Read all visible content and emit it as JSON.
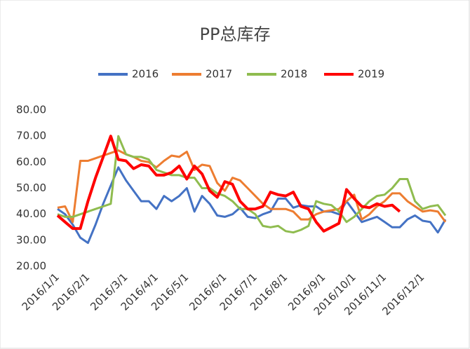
{
  "chart_data": {
    "type": "line",
    "title": "PP总库存",
    "categories": [
      "2016/1/1",
      null,
      null,
      null,
      "2016/2/1",
      null,
      null,
      null,
      null,
      "2016/3/1",
      null,
      null,
      null,
      "2016/4/1",
      null,
      null,
      null,
      "2016/5/1",
      null,
      null,
      null,
      null,
      "2016/6/1",
      null,
      null,
      null,
      "2016/7/1",
      null,
      null,
      null,
      "2016/8/1",
      null,
      null,
      null,
      null,
      "2016/9/1",
      null,
      null,
      null,
      "2016/10/1",
      null,
      null,
      null,
      "2016/11/1",
      null,
      null,
      null,
      null,
      "2016/12/1",
      null,
      null,
      null
    ],
    "series": [
      {
        "name": "2016",
        "color": "#4472c4",
        "values": [
          42,
          40,
          36,
          31,
          29,
          36,
          44,
          51,
          58,
          53,
          49,
          45,
          45,
          42,
          47,
          45,
          47,
          50,
          41,
          47,
          44,
          39.5,
          39,
          40,
          42.5,
          39,
          38.5,
          40,
          41,
          46,
          46,
          42.5,
          43.5,
          43,
          43,
          41,
          41,
          40,
          45,
          41,
          37,
          38,
          39,
          37,
          35,
          35,
          38,
          39.5,
          37.5,
          37,
          33,
          38
        ]
      },
      {
        "name": "2017",
        "color": "#ed7d31",
        "values": [
          42.5,
          43,
          37,
          60.5,
          60.5,
          61.5,
          62.5,
          63.5,
          64.5,
          63,
          62,
          60.5,
          60,
          58,
          60.5,
          62.5,
          62,
          64,
          57,
          59,
          58.5,
          52,
          49,
          54,
          53,
          50,
          47,
          44,
          42,
          42,
          42,
          41,
          38,
          38,
          40,
          41,
          41.5,
          42,
          45,
          47.5,
          38,
          40,
          43,
          45,
          48,
          48,
          45,
          43,
          41,
          41.5,
          41,
          37
        ]
      },
      {
        "name": "2018",
        "color": "#8fbc4f",
        "values": [
          40,
          39,
          39,
          40,
          41,
          42,
          43,
          44,
          70,
          63,
          62,
          62,
          61,
          57,
          56,
          55,
          55,
          54,
          54,
          50,
          50,
          48,
          47,
          45,
          42,
          42,
          40,
          35.5,
          35,
          35.5,
          33.5,
          33,
          34,
          35.5,
          45,
          44,
          43.5,
          41,
          37,
          39,
          42,
          45,
          47,
          47.5,
          50,
          53.5,
          53.5,
          45,
          42,
          43,
          43.5,
          39.5
        ]
      },
      {
        "name": "2019",
        "color": "#ff0000",
        "values": [
          39.5,
          37,
          34.5,
          34.5,
          45,
          54,
          62,
          70,
          61,
          60.5,
          57.5,
          59,
          58.5,
          55,
          55,
          56,
          58.5,
          53.5,
          58.5,
          55.5,
          49,
          46.5,
          52.5,
          51.5,
          45,
          42,
          42,
          43,
          48.5,
          47.5,
          47,
          48.5,
          43,
          42,
          37,
          33.5,
          35,
          36.5,
          49.5,
          46,
          43,
          42.5,
          44,
          43,
          43.5,
          41,
          null,
          null,
          null,
          null,
          null,
          null
        ]
      }
    ],
    "ylim": [
      20,
      80
    ],
    "yticks": [
      {
        "value": 20,
        "label": "20.00"
      },
      {
        "value": 30,
        "label": "30.00"
      },
      {
        "value": 40,
        "label": "40.00"
      },
      {
        "value": 50,
        "label": "50.00"
      },
      {
        "value": 60,
        "label": "60.00"
      },
      {
        "value": 70,
        "label": "70.00"
      },
      {
        "value": 80,
        "label": "80.00"
      }
    ],
    "legend": "top"
  }
}
